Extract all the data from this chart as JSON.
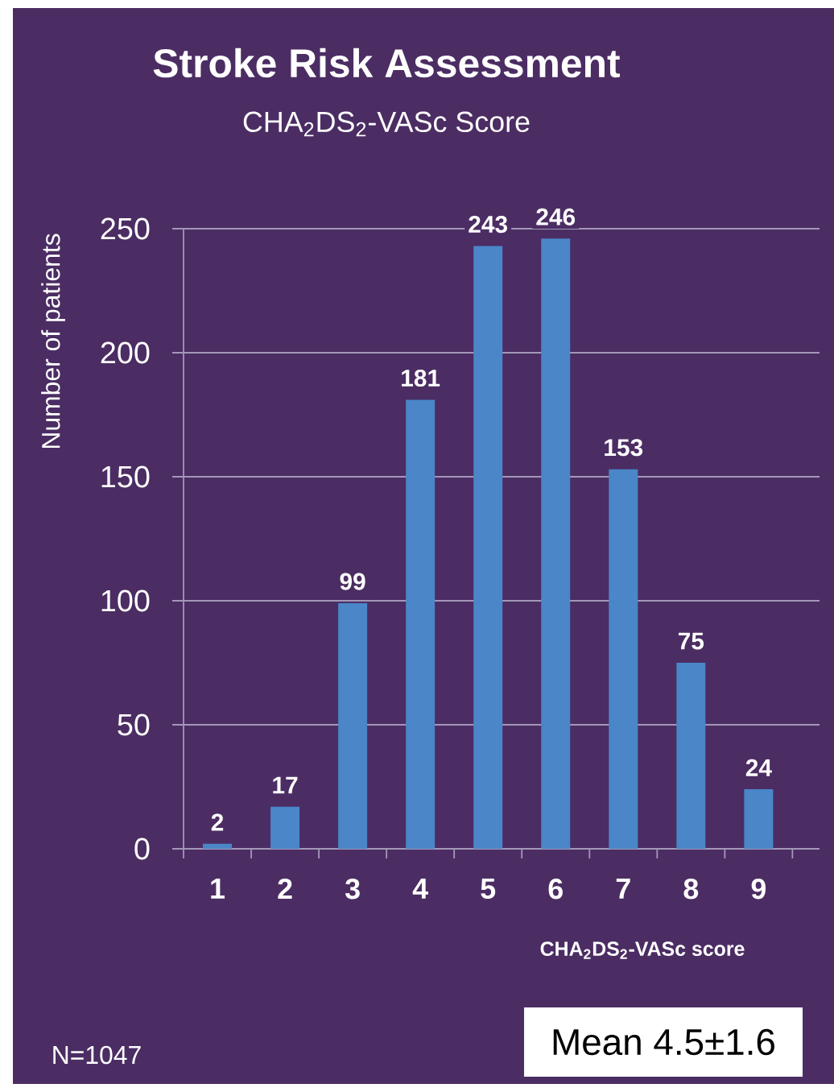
{
  "chart_data": {
    "type": "bar",
    "title": "Stroke Risk Assessment",
    "subtitle": "CHA$_{2}$DS$_{2}$-VASc Score",
    "xlabel": "CHA$_{2}$DS$_{2}$-VASc score",
    "ylabel": "Number of patients",
    "categories": [
      "1",
      "2",
      "3",
      "4",
      "5",
      "6",
      "7",
      "8",
      "9"
    ],
    "values": [
      2,
      17,
      99,
      181,
      243,
      246,
      153,
      75,
      24
    ],
    "color": "#4a86c8",
    "ylim": [
      0,
      250
    ],
    "yticks": [
      0,
      50,
      100,
      150,
      200,
      250
    ],
    "grid": "y",
    "data_labels": true,
    "annotations": [
      "N=1047",
      "Mean 4.5±1.6"
    ]
  }
}
